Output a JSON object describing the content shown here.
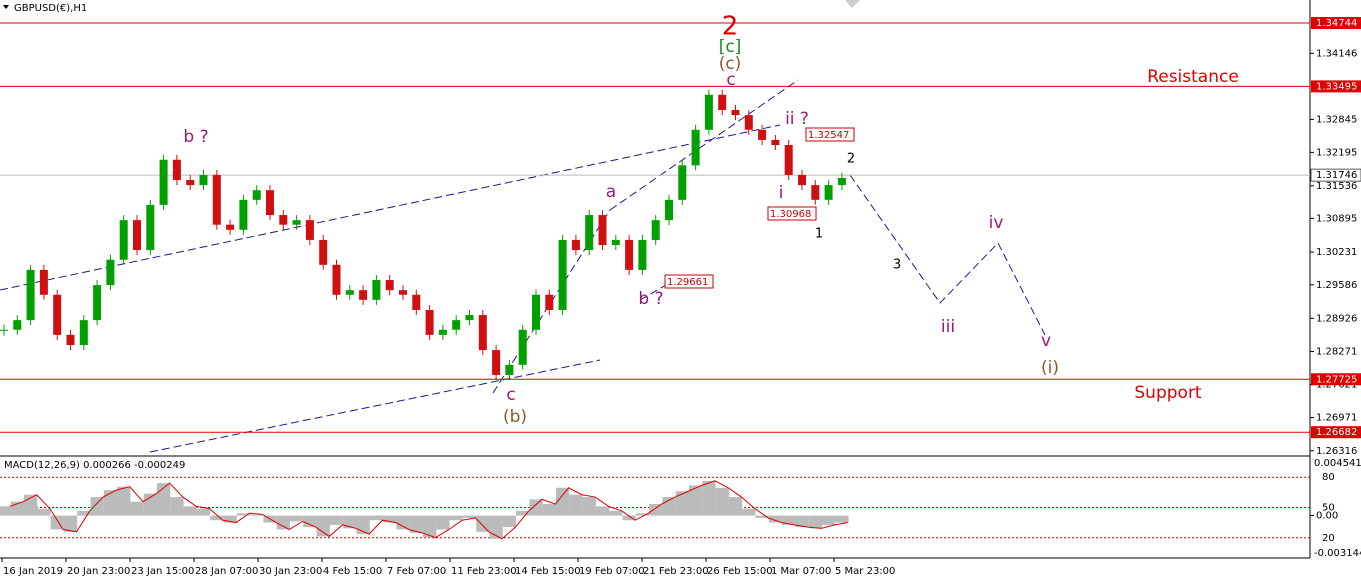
{
  "chart_data": {
    "type": "candlestick",
    "title": "GBPUSD(€),H1",
    "closes": [
      1.287,
      1.2889,
      1.2988,
      1.2939,
      1.286,
      1.284,
      1.2889,
      1.2958,
      1.3008,
      1.3086,
      1.3027,
      1.3116,
      1.3205,
      1.3165,
      1.3155,
      1.3175,
      1.3077,
      1.3067,
      1.3126,
      1.3145,
      1.3096,
      1.3077,
      1.3086,
      1.3047,
      1.2998,
      1.2939,
      1.2948,
      1.2929,
      1.2968,
      1.2948,
      1.2939,
      1.2909,
      1.286,
      1.287,
      1.2889,
      1.2899,
      1.283,
      1.2781,
      1.2801,
      1.287,
      1.2939,
      1.2909,
      1.3047,
      1.3027,
      1.3096,
      1.3037,
      1.3047,
      1.2988,
      1.3047,
      1.3086,
      1.3126,
      1.3194,
      1.3264,
      1.3333,
      1.3303,
      1.3293,
      1.3264,
      1.3244,
      1.3234,
      1.3175,
      1.3155,
      1.3126,
      1.3155,
      1.3169
    ],
    "up_color": "#00a000",
    "down_color": "#d01010",
    "ylim": [
      1.26233,
      1.35197
    ],
    "yticks": [
      1.34146,
      1.32845,
      1.32195,
      1.31536,
      1.30895,
      1.30231,
      1.29586,
      1.28926,
      1.28271,
      1.27621,
      1.26971,
      1.26316
    ],
    "levels": [
      1.34744,
      1.33495,
      1.27725,
      1.26682
    ],
    "level_color": "#e00000",
    "current_price": 1.31746,
    "xlabels": [
      "16 Jan 2019",
      "20 Jan 23:00",
      "23 Jan 15:00",
      "28 Jan 07:00",
      "30 Jan 23:00",
      "4 Feb 15:00",
      "7 Feb 07:00",
      "11 Feb 23:00",
      "14 Feb 15:00",
      "19 Feb 07:00",
      "21 Feb 23:00",
      "26 Feb 15:00",
      "1 Mar 07:00",
      "5 Mar 23:00"
    ],
    "annotations": [
      "2",
      "[c]",
      "(c)",
      "c",
      "Resistance",
      "Support",
      "b ?",
      "a",
      "b ?",
      "c",
      "(b)",
      "ii ?",
      "i",
      "1",
      "2",
      "3",
      "iii",
      "iv",
      "v",
      "(i)"
    ],
    "price_tags": [
      1.32547,
      1.30968,
      1.29661
    ],
    "macd": {
      "label": "MACD(12,26,9) 0.000266 -0.000249",
      "ylim": [
        -0.003144,
        0.004541
      ],
      "zero_label": {
        "value": 0,
        "label": "0.00"
      },
      "values": [
        0.0008,
        0.0012,
        0.0018,
        0.0006,
        -0.0012,
        -0.0014,
        0.0004,
        0.0016,
        0.0022,
        0.0025,
        0.0012,
        0.0019,
        0.0028,
        0.0016,
        0.0008,
        0.0006,
        -0.0004,
        -0.0006,
        0.0002,
        0.0001,
        -0.0006,
        -0.0012,
        -0.0005,
        -0.001,
        -0.0018,
        -0.0008,
        -0.0011,
        -0.0016,
        -0.0004,
        -0.0006,
        -0.0012,
        -0.0015,
        -0.0019,
        -0.0012,
        -0.0004,
        -0.0002,
        -0.0014,
        -0.002,
        -0.001,
        0.0004,
        0.0014,
        0.001,
        0.0024,
        0.0018,
        0.0016,
        0.0008,
        0.0004,
        -0.0004,
        0.0002,
        0.001,
        0.0016,
        0.0021,
        0.0026,
        0.003,
        0.0024,
        0.0016,
        0.0006,
        -0.0002,
        -0.0006,
        -0.0008,
        -0.001,
        -0.0011,
        -0.0008,
        -0.0006
      ]
    },
    "stoch_levels": [
      80,
      50,
      20
    ],
    "stoch_ylim": [
      0,
      100
    ]
  }
}
